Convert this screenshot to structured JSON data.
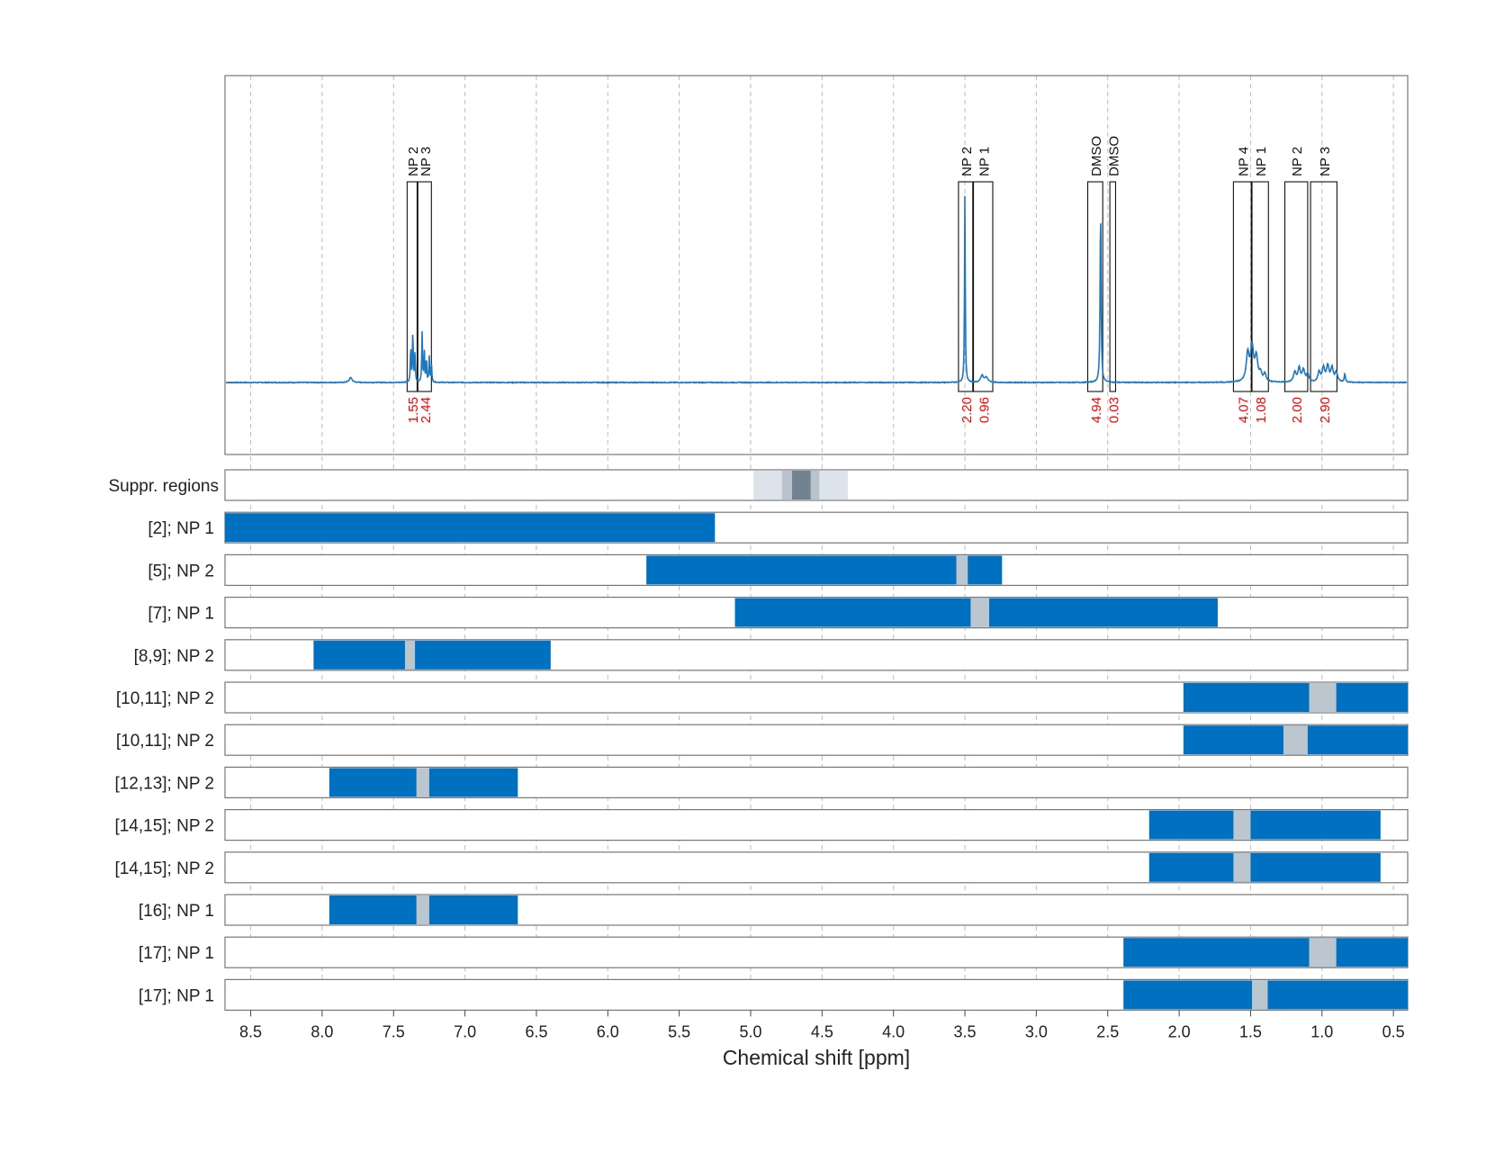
{
  "chart_data": {
    "type": "line",
    "xlabel": "Chemical shift [ppm]",
    "xlim": [
      8.68,
      0.4
    ],
    "xticks": [
      8.5,
      8.0,
      7.5,
      7.0,
      6.5,
      6.0,
      5.5,
      5.0,
      4.5,
      4.0,
      3.5,
      3.0,
      2.5,
      2.0,
      1.5,
      1.0,
      0.5
    ],
    "xtick_labels": [
      "8.5",
      "8.0",
      "7.5",
      "7.0",
      "6.5",
      "6.0",
      "5.5",
      "5.0",
      "4.5",
      "4.0",
      "3.5",
      "3.0",
      "2.5",
      "2.0",
      "1.5",
      "1.0",
      "0.5"
    ],
    "grid": "vertical dashed",
    "spectrum": {
      "color": "#1f77c0",
      "baseline": 0,
      "peaks": [
        {
          "ppm": 7.8,
          "height": 0.025,
          "width": 0.012
        },
        {
          "ppm": 7.38,
          "height": 0.18,
          "width": 0.003
        },
        {
          "ppm": 7.365,
          "height": 0.26,
          "width": 0.003
        },
        {
          "ppm": 7.35,
          "height": 0.14,
          "width": 0.003
        },
        {
          "ppm": 7.3,
          "height": 0.25,
          "width": 0.003
        },
        {
          "ppm": 7.285,
          "height": 0.16,
          "width": 0.003
        },
        {
          "ppm": 7.27,
          "height": 0.12,
          "width": 0.003
        },
        {
          "ppm": 7.25,
          "height": 0.13,
          "width": 0.003
        },
        {
          "ppm": 7.235,
          "height": 0.1,
          "width": 0.003
        },
        {
          "ppm": 3.5,
          "height": 0.95,
          "width": 0.003
        },
        {
          "ppm": 3.38,
          "height": 0.035,
          "width": 0.012
        },
        {
          "ppm": 3.35,
          "height": 0.025,
          "width": 0.012
        },
        {
          "ppm": 2.55,
          "height": 0.88,
          "width": 0.004
        },
        {
          "ppm": 1.52,
          "height": 0.14,
          "width": 0.012
        },
        {
          "ppm": 1.49,
          "height": 0.17,
          "width": 0.012
        },
        {
          "ppm": 1.46,
          "height": 0.12,
          "width": 0.012
        },
        {
          "ppm": 1.43,
          "height": 0.04,
          "width": 0.01
        },
        {
          "ppm": 1.4,
          "height": 0.04,
          "width": 0.01
        },
        {
          "ppm": 1.19,
          "height": 0.05,
          "width": 0.01
        },
        {
          "ppm": 1.16,
          "height": 0.07,
          "width": 0.01
        },
        {
          "ppm": 1.13,
          "height": 0.06,
          "width": 0.01
        },
        {
          "ppm": 1.1,
          "height": 0.04,
          "width": 0.01
        },
        {
          "ppm": 1.02,
          "height": 0.05,
          "width": 0.01
        },
        {
          "ppm": 0.99,
          "height": 0.07,
          "width": 0.01
        },
        {
          "ppm": 0.96,
          "height": 0.08,
          "width": 0.01
        },
        {
          "ppm": 0.93,
          "height": 0.07,
          "width": 0.01
        },
        {
          "ppm": 0.9,
          "height": 0.05,
          "width": 0.01
        },
        {
          "ppm": 0.84,
          "height": 0.04,
          "width": 0.005
        }
      ]
    },
    "integration_regions": [
      {
        "from": 7.405,
        "to": 7.335,
        "label": "NP 2",
        "integral": "1.55"
      },
      {
        "from": 7.33,
        "to": 7.235,
        "label": "NP 3",
        "integral": "2.44"
      },
      {
        "from": 3.545,
        "to": 3.445,
        "label": "NP 2",
        "integral": "2.20"
      },
      {
        "from": 3.44,
        "to": 3.305,
        "label": "NP 1",
        "integral": "0.96"
      },
      {
        "from": 2.64,
        "to": 2.535,
        "label": "DMSO",
        "integral": "4.94"
      },
      {
        "from": 2.485,
        "to": 2.445,
        "label": "DMSO",
        "integral": "0.03"
      },
      {
        "from": 1.62,
        "to": 1.495,
        "label": "NP 4",
        "integral": "4.07"
      },
      {
        "from": 1.49,
        "to": 1.375,
        "label": "NP 1",
        "integral": "1.08"
      },
      {
        "from": 1.26,
        "to": 1.1,
        "label": "NP 2",
        "integral": "2.00"
      },
      {
        "from": 1.08,
        "to": 0.895,
        "label": "NP 3",
        "integral": "2.90"
      }
    ],
    "suppressed_regions": {
      "label": "Suppr. regions",
      "bands": [
        {
          "from": 4.98,
          "to": 4.32,
          "color": "#dde3ea"
        },
        {
          "from": 4.78,
          "to": 4.52,
          "color": "#b8c3cd"
        },
        {
          "from": 4.71,
          "to": 4.58,
          "color": "#718391"
        }
      ]
    },
    "rows": [
      {
        "label": "[2]; NP 1",
        "from": 8.68,
        "to": 5.25,
        "gap": null
      },
      {
        "label": "[5]; NP 2",
        "from": 5.73,
        "to": 3.24,
        "gap": [
          3.56,
          3.48
        ]
      },
      {
        "label": "[7]; NP 1",
        "from": 5.11,
        "to": 1.73,
        "gap": [
          3.46,
          3.33
        ]
      },
      {
        "label": "[8,9]; NP 2",
        "from": 8.06,
        "to": 6.4,
        "gap": [
          7.42,
          7.35
        ]
      },
      {
        "label": "[10,11]; NP 2",
        "from": 1.97,
        "to": 0.4,
        "gap": [
          1.09,
          0.9
        ]
      },
      {
        "label": "[10,11]; NP 2",
        "from": 1.97,
        "to": 0.4,
        "gap": [
          1.27,
          1.1
        ]
      },
      {
        "label": "[12,13]; NP 2",
        "from": 7.95,
        "to": 6.63,
        "gap": [
          7.34,
          7.25
        ]
      },
      {
        "label": "[14,15]; NP 2",
        "from": 2.21,
        "to": 0.59,
        "gap": [
          1.62,
          1.5
        ]
      },
      {
        "label": "[14,15]; NP 2",
        "from": 2.21,
        "to": 0.59,
        "gap": [
          1.62,
          1.5
        ]
      },
      {
        "label": "[16]; NP 1",
        "from": 7.95,
        "to": 6.63,
        "gap": [
          7.34,
          7.25
        ]
      },
      {
        "label": "[17]; NP 1",
        "from": 2.39,
        "to": 0.4,
        "gap": [
          1.09,
          0.9
        ]
      },
      {
        "label": "[17]; NP 1",
        "from": 2.39,
        "to": 0.4,
        "gap": [
          1.49,
          1.38
        ]
      }
    ],
    "colors": {
      "bar": "#0070c0",
      "gap": "#bcc6ce",
      "integral_text": "#ff0000",
      "spectrum": "#1f77c0"
    }
  }
}
